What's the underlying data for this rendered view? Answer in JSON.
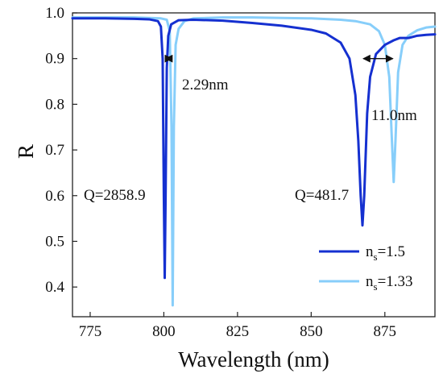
{
  "chart_data": {
    "type": "line",
    "title": "",
    "xlabel": "Wavelength (nm)",
    "ylabel": "R",
    "xlim": [
      769,
      892
    ],
    "ylim": [
      0.335,
      1.0
    ],
    "xticks": [
      775,
      800,
      825,
      850,
      875
    ],
    "yticks": [
      0.4,
      0.5,
      0.6,
      0.7,
      0.8,
      0.9,
      1.0
    ],
    "xtick_labels": [
      "775",
      "800",
      "825",
      "850",
      "875"
    ],
    "ytick_labels": [
      "0.4",
      "0.5",
      "0.6",
      "0.7",
      "0.8",
      "0.9",
      "1.0"
    ],
    "grid": false,
    "legend_position": "bottom-right",
    "series": [
      {
        "label_main": "n",
        "label_sub": "s",
        "label_value": "=1.5",
        "color": "#1530d0",
        "x": [
          769,
          780,
          790,
          795,
          798,
          799,
          799.6,
          800.0,
          800.3,
          800.6,
          801.0,
          801.5,
          802.5,
          805,
          810,
          820,
          830,
          840,
          850,
          855,
          860,
          863,
          865,
          866,
          866.8,
          867.4,
          868.0,
          869,
          870,
          872,
          875,
          878,
          880,
          883,
          886,
          889,
          892
        ],
        "y": [
          0.988,
          0.988,
          0.987,
          0.986,
          0.982,
          0.97,
          0.9,
          0.6,
          0.42,
          0.6,
          0.88,
          0.95,
          0.975,
          0.984,
          0.985,
          0.983,
          0.978,
          0.972,
          0.963,
          0.955,
          0.935,
          0.9,
          0.82,
          0.72,
          0.6,
          0.535,
          0.6,
          0.78,
          0.86,
          0.91,
          0.93,
          0.94,
          0.945,
          0.945,
          0.95,
          0.952,
          0.953
        ]
      },
      {
        "label_main": "n",
        "label_sub": "s",
        "label_value": "=1.33",
        "color": "#87cefa",
        "x": [
          769,
          780,
          790,
          795,
          799,
          801,
          802,
          802.6,
          803.0,
          803.4,
          804.0,
          805,
          807,
          810,
          820,
          830,
          840,
          850,
          860,
          865,
          870,
          873,
          875,
          876.5,
          877.4,
          878.0,
          878.6,
          879.5,
          881,
          883,
          886,
          889,
          892
        ],
        "y": [
          0.99,
          0.99,
          0.99,
          0.989,
          0.988,
          0.985,
          0.96,
          0.75,
          0.36,
          0.75,
          0.93,
          0.965,
          0.982,
          0.988,
          0.99,
          0.99,
          0.989,
          0.988,
          0.985,
          0.982,
          0.975,
          0.96,
          0.93,
          0.86,
          0.72,
          0.63,
          0.72,
          0.87,
          0.93,
          0.95,
          0.962,
          0.968,
          0.97
        ]
      }
    ],
    "annotations": [
      {
        "text": "2.29nm",
        "x_from": 800.3,
        "x_to": 803.0,
        "y": 0.85
      },
      {
        "text": "11.0nm",
        "x_from": 867.4,
        "x_to": 878.0,
        "y": 0.85
      },
      {
        "text": "Q=2858.9",
        "x": 799.3,
        "y": 0.6
      },
      {
        "text": "Q=481.7",
        "x": 866.2,
        "y": 0.6
      }
    ]
  }
}
